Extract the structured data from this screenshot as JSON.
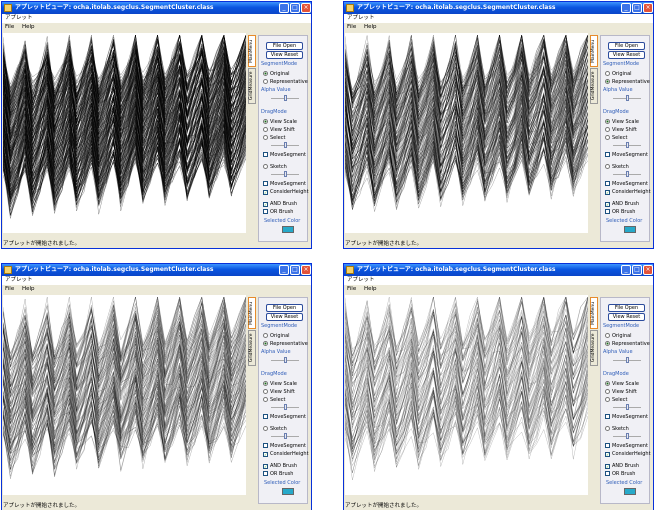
{
  "window": {
    "title": "アプレットビューア: ocha.itolab.segclus.SegmentCluster.class",
    "applet_menu": "アプレット",
    "menus": [
      "File",
      "Help"
    ],
    "status": "アプレットが開始されました。",
    "tabs": [
      "MainMenu",
      "GridMeasure"
    ]
  },
  "panel": {
    "file_open": "File Open",
    "view_reset": "View Reset",
    "segment_mode_label": "SegmentMode",
    "original": "Original",
    "representative": "Representative",
    "alpha_label": "Alpha Value",
    "drag_mode_label": "DragMode",
    "view_scale": "View Scale",
    "view_shift": "View Shift",
    "select": "Select",
    "move_segment": "MoveSegment",
    "sketch": "Sketch",
    "move_segment2": "MoveSegment",
    "consider_height": "ConsiderHeight",
    "and_brush": "AND Brush",
    "or_brush": "OR Brush",
    "selected_color_label": "Selected Color",
    "selected_color": "#27a9c9"
  },
  "screens": [
    {
      "segment_mode": "original",
      "density": 3.2
    },
    {
      "segment_mode": "representative",
      "density": 2.2
    },
    {
      "segment_mode": "representative",
      "density": 1.6
    },
    {
      "segment_mode": "representative",
      "density": 1.1
    }
  ]
}
